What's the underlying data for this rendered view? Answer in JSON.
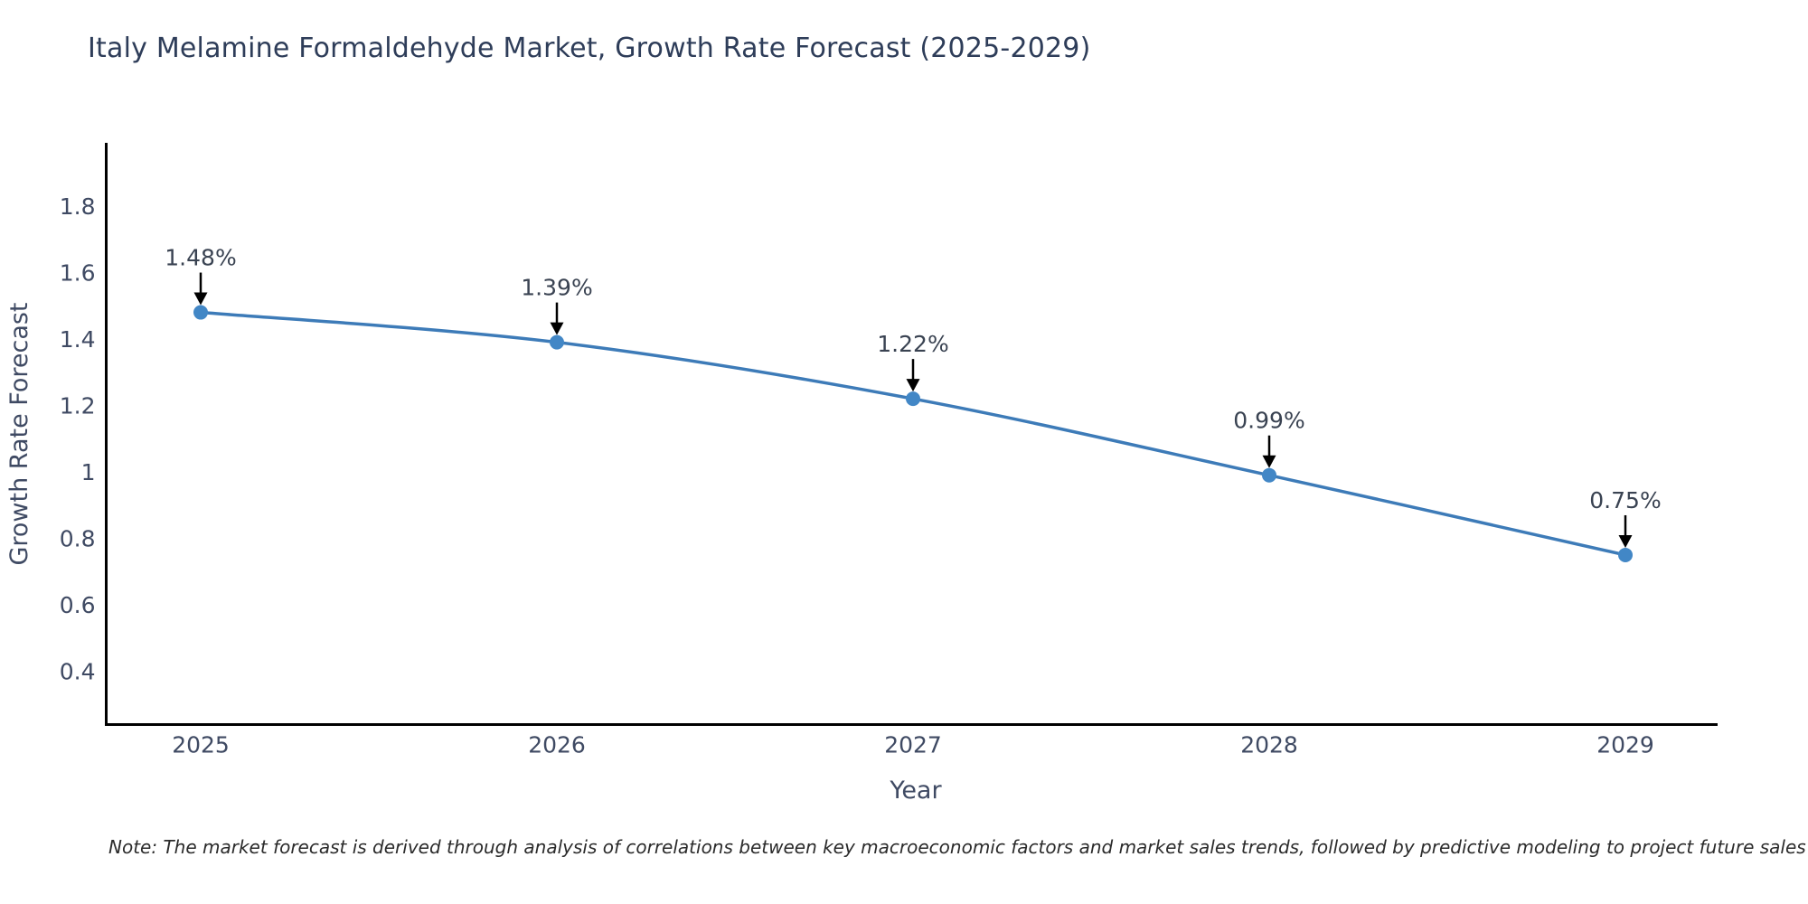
{
  "chart_data": {
    "type": "line",
    "title": "Italy Melamine Formaldehyde Market, Growth Rate Forecast (2025-2029)",
    "xlabel": "Year",
    "ylabel": "Growth Rate Forecast",
    "categories": [
      "2025",
      "2026",
      "2027",
      "2028",
      "2029"
    ],
    "series": [
      {
        "name": "Growth Rate Forecast",
        "values": [
          1.48,
          1.39,
          1.22,
          0.99,
          0.75
        ],
        "point_labels": [
          "1.48%",
          "1.39%",
          "1.22%",
          "0.99%",
          "0.75%"
        ]
      }
    ],
    "yticks": [
      0.4,
      0.6,
      0.8,
      1,
      1.2,
      1.4,
      1.6,
      1.8
    ],
    "ytick_labels": [
      "0.4",
      "0.6",
      "0.8",
      "1",
      "1.2",
      "1.4",
      "1.6",
      "1.8"
    ],
    "ylim": [
      0.24,
      1.99
    ],
    "grid": false,
    "legend_position": "none",
    "colors": {
      "line": "#3d7bb8",
      "marker": "#4287c6",
      "annotation_text": "#3a4352",
      "annotation_arrow": "#000000",
      "axis_spine": "#000000",
      "tick_label": "#3f4a63",
      "axis_label": "#3f4a63",
      "title": "#2e3d59"
    }
  },
  "note": "Note: The market forecast is derived through analysis of correlations between key macroeconomic factors and market sales trends, followed by predictive modeling to project future sales"
}
